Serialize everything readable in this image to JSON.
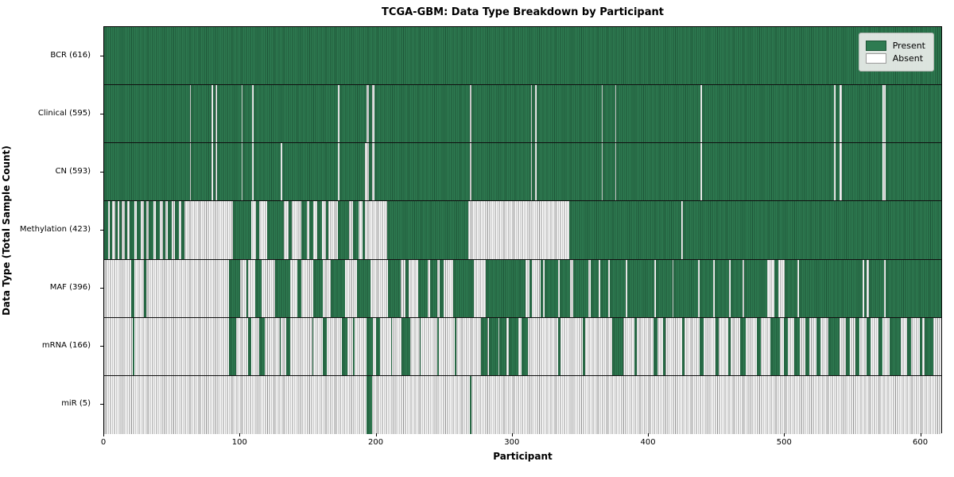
{
  "title": "TCGA-GBM: Data Type Breakdown by Participant",
  "xlabel": "Participant",
  "ylabel": "Data Type (Total Sample Count)",
  "legend": {
    "present_label": "Present",
    "absent_label": "Absent"
  },
  "colors": {
    "present_fill": "#2e7b51",
    "present_edge": "#1d5537",
    "absent_fill": "#ffffff",
    "absent_edge": "#8f8f8f",
    "legend_bg": "#ecesec-approx-#ececec"
  },
  "chart_data": {
    "type": "heatmap",
    "title": "TCGA-GBM: Data Type Breakdown by Participant",
    "xlabel": "Participant",
    "ylabel": "Data Type (Total Sample Count)",
    "legend_entries": [
      "Present",
      "Absent"
    ],
    "legend_position": "upper right",
    "n_participants": 616,
    "x_ticks": [
      0,
      100,
      200,
      300,
      400,
      500,
      600
    ],
    "cell_encoding": "present_segments are [start,end) participant index ranges rendered green; all other cells are absent (white)",
    "rows": [
      {
        "label": "BCR (616)",
        "data_type": "BCR",
        "count": 616,
        "present_segments": [
          [
            0,
            616
          ]
        ]
      },
      {
        "label": "Clinical (595)",
        "data_type": "Clinical",
        "count": 595,
        "present_segments": [
          [
            0,
            63
          ],
          [
            64,
            79
          ],
          [
            80,
            82
          ],
          [
            83,
            101
          ],
          [
            102,
            109
          ],
          [
            110,
            172
          ],
          [
            173,
            193
          ],
          [
            195,
            197
          ],
          [
            199,
            269
          ],
          [
            270,
            314
          ],
          [
            315,
            317
          ],
          [
            318,
            366
          ],
          [
            367,
            376
          ],
          [
            377,
            439
          ],
          [
            440,
            537
          ],
          [
            538,
            541
          ],
          [
            543,
            573
          ],
          [
            575,
            616
          ]
        ]
      },
      {
        "label": "CN (593)",
        "data_type": "CN",
        "count": 593,
        "present_segments": [
          [
            0,
            63
          ],
          [
            64,
            79
          ],
          [
            80,
            82
          ],
          [
            83,
            101
          ],
          [
            102,
            109
          ],
          [
            110,
            130
          ],
          [
            131,
            172
          ],
          [
            173,
            192
          ],
          [
            195,
            197
          ],
          [
            199,
            269
          ],
          [
            270,
            314
          ],
          [
            315,
            317
          ],
          [
            318,
            366
          ],
          [
            367,
            376
          ],
          [
            377,
            439
          ],
          [
            440,
            537
          ],
          [
            538,
            541
          ],
          [
            543,
            573
          ],
          [
            575,
            616
          ]
        ]
      },
      {
        "label": "Methylation (423)",
        "data_type": "Methylation",
        "count": 423,
        "present_segments": [
          [
            0,
            3
          ],
          [
            4,
            6
          ],
          [
            8,
            10
          ],
          [
            11,
            13
          ],
          [
            15,
            17
          ],
          [
            19,
            22
          ],
          [
            24,
            27
          ],
          [
            29,
            31
          ],
          [
            33,
            36
          ],
          [
            38,
            41
          ],
          [
            43,
            45
          ],
          [
            47,
            50
          ],
          [
            52,
            55
          ],
          [
            57,
            59
          ],
          [
            95,
            108
          ],
          [
            112,
            114
          ],
          [
            120,
            132
          ],
          [
            136,
            138
          ],
          [
            145,
            149
          ],
          [
            151,
            154
          ],
          [
            157,
            160
          ],
          [
            163,
            165
          ],
          [
            172,
            180
          ],
          [
            183,
            187
          ],
          [
            190,
            192
          ],
          [
            208,
            268
          ],
          [
            342,
            425
          ],
          [
            426,
            616
          ]
        ]
      },
      {
        "label": "MAF (396)",
        "data_type": "MAF",
        "count": 396,
        "present_segments": [
          [
            20,
            22
          ],
          [
            29,
            31
          ],
          [
            92,
            100
          ],
          [
            105,
            106
          ],
          [
            111,
            116
          ],
          [
            126,
            137
          ],
          [
            142,
            145
          ],
          [
            154,
            161
          ],
          [
            167,
            177
          ],
          [
            186,
            196
          ],
          [
            209,
            218
          ],
          [
            222,
            224
          ],
          [
            231,
            238
          ],
          [
            240,
            245
          ],
          [
            247,
            250
          ],
          [
            257,
            272
          ],
          [
            281,
            310
          ],
          [
            313,
            315
          ],
          [
            321,
            323
          ],
          [
            324,
            334
          ],
          [
            335,
            343
          ],
          [
            345,
            356
          ],
          [
            358,
            364
          ],
          [
            365,
            371
          ],
          [
            372,
            384
          ],
          [
            385,
            405
          ],
          [
            406,
            418
          ],
          [
            419,
            437
          ],
          [
            438,
            448
          ],
          [
            449,
            460
          ],
          [
            461,
            470
          ],
          [
            471,
            488
          ],
          [
            493,
            496
          ],
          [
            501,
            510
          ],
          [
            511,
            558
          ],
          [
            559,
            561
          ],
          [
            563,
            574
          ],
          [
            575,
            616
          ]
        ]
      },
      {
        "label": "mRNA (166)",
        "data_type": "mRNA",
        "count": 166,
        "present_segments": [
          [
            21,
            22
          ],
          [
            92,
            97
          ],
          [
            106,
            108
          ],
          [
            114,
            118
          ],
          [
            129,
            130
          ],
          [
            134,
            137
          ],
          [
            153,
            154
          ],
          [
            161,
            164
          ],
          [
            175,
            179
          ],
          [
            183,
            184
          ],
          [
            193,
            198
          ],
          [
            200,
            203
          ],
          [
            211,
            212
          ],
          [
            219,
            225
          ],
          [
            232,
            233
          ],
          [
            245,
            246
          ],
          [
            258,
            259
          ],
          [
            277,
            282
          ],
          [
            283,
            290
          ],
          [
            291,
            296
          ],
          [
            298,
            305
          ],
          [
            307,
            312
          ],
          [
            334,
            336
          ],
          [
            352,
            354
          ],
          [
            374,
            382
          ],
          [
            390,
            392
          ],
          [
            404,
            407
          ],
          [
            411,
            413
          ],
          [
            425,
            427
          ],
          [
            438,
            441
          ],
          [
            450,
            452
          ],
          [
            459,
            461
          ],
          [
            468,
            472
          ],
          [
            480,
            483
          ],
          [
            490,
            497
          ],
          [
            500,
            503
          ],
          [
            508,
            512
          ],
          [
            516,
            519
          ],
          [
            524,
            527
          ],
          [
            533,
            541
          ],
          [
            546,
            549
          ],
          [
            553,
            556
          ],
          [
            561,
            564
          ],
          [
            570,
            573
          ],
          [
            578,
            586
          ],
          [
            591,
            594
          ],
          [
            600,
            602
          ],
          [
            604,
            610
          ]
        ]
      },
      {
        "label": "miR (5)",
        "data_type": "miR",
        "count": 5,
        "present_segments": [
          [
            193,
            197
          ],
          [
            269,
            270
          ]
        ]
      }
    ]
  }
}
